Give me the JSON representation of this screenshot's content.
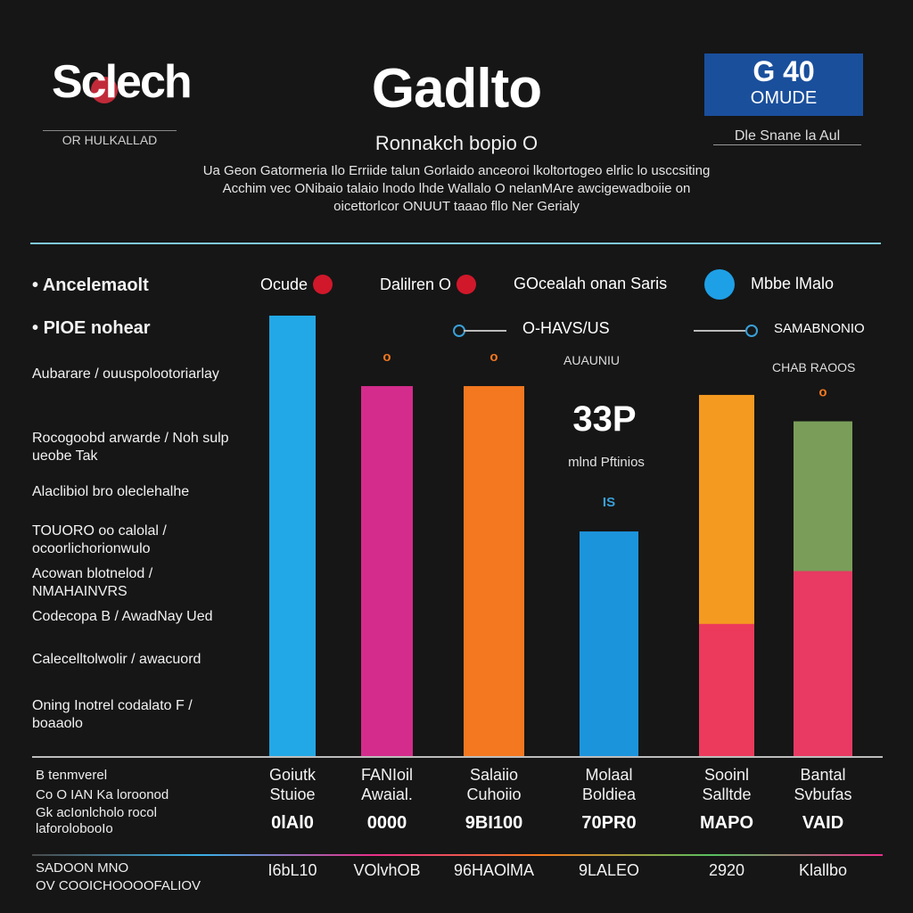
{
  "header": {
    "logo_text": "Sclech",
    "logo_sub": "OR HULKALLAD",
    "title": "Gadlto",
    "subtitle": "Ronnakch bopio O",
    "badge_big": "G 40",
    "badge_small": "OMUDE",
    "badge_sub": "Dle Snane la Aul",
    "description": [
      "Ua Geon Gatormeria Ilo Erriide talun Gorlaido anceoroi lkoltortogeo elrlic lo usccsiting",
      "Acchim vec ONibaio talaio lnodo lhde Wallalo O nelanMAre awcigewadboiie on",
      "oicettorlcor ONUUT taaao fllo Ner Gerialy"
    ]
  },
  "sidebar": [
    {
      "text": "Ancelemaolt",
      "strong": true
    },
    {
      "text": "PIOE nohear",
      "strong": true
    },
    {
      "text": "Aubarare / ouuspolootoriarlay",
      "strong": false
    },
    {
      "text": "Rocogoobd arwarde / Noh sulp ueobe Tak",
      "strong": false
    },
    {
      "text": "Alaclibiol bro oleclehalhe",
      "strong": false
    },
    {
      "text": "TOUORO oo calolal / ocoorlichorionwulo",
      "strong": false
    },
    {
      "text": "Acowan blotnelod / NMAHAINVRS",
      "strong": false
    },
    {
      "text": "Codecopa B / AwadNay Ued",
      "strong": false
    },
    {
      "text": "Calecelltolwolir / awacuord",
      "strong": false
    },
    {
      "text": "Oning Inotrel codalato F / boaaolo",
      "strong": false
    }
  ],
  "legend": {
    "items": [
      {
        "label": "Ocude",
        "color": "#d0182a",
        "icon": "circle-icon"
      },
      {
        "label": "Dalilren O",
        "color": "#d0182a",
        "icon": "circle-icon"
      },
      {
        "label": "GOcealah onan Saris",
        "color": "#3aa0d8",
        "icon": "circle-icon"
      },
      {
        "label": "Mbbe lMalo",
        "color": "#3aa0d8",
        "icon": "circle-icon"
      }
    ],
    "range_label": "O-HAVS/US",
    "range_sub": "AUAUNIU",
    "right_label_1": "SAMABNONIO",
    "right_label_2": "CHAB RAOOS"
  },
  "callout": {
    "big": "33P",
    "small": "mlnd Pftinios"
  },
  "chart_data": {
    "type": "bar",
    "categories": [
      "Goiutk Stuioe",
      "FANIoil Awaial.",
      "Salaiio Cuhoiio",
      "Molaal Boldiea",
      "Sooinl Salltde",
      "Bantal Svbufas"
    ],
    "ylim": [
      0,
      100
    ],
    "grid": false,
    "series": [
      {
        "values": [
          100,
          84,
          84,
          51,
          82,
          76
        ],
        "colors": [
          "#22a8e6",
          "#d42c8c",
          "#f47820",
          "#1c94dc",
          "#f49a20",
          "#7a9e5a"
        ]
      },
      {
        "values": [
          0,
          0,
          0,
          0,
          30,
          42
        ],
        "colors": [
          "#22a8e6",
          "#d42c8c",
          "#f47820",
          "#1c94dc",
          "#ec3a5c",
          "#e83a62"
        ]
      }
    ],
    "value_labels": [
      "0lAl0",
      "0000",
      "9BI100",
      "70PR0",
      "MAPO",
      "VAID"
    ],
    "secondary_labels": [
      "I6bL10",
      "VOlvhOB",
      "96HAOlMA",
      "9LALEO",
      "2920",
      "Klallbo"
    ],
    "bar_top_markers": [
      "",
      "o",
      "o",
      "IS",
      "",
      "o"
    ]
  },
  "bottom_left": [
    "B tenmverel",
    "Co O IAN Ka loroonod",
    "Gk acIonlcholo rocol",
    "laforolobooIo",
    "SADOON MNO",
    "OV COOICHOOOOFALIOV"
  ],
  "colors": {
    "background": "#161616",
    "accent_blue": "#1a4f9c",
    "rule": "#7fc8dc"
  }
}
